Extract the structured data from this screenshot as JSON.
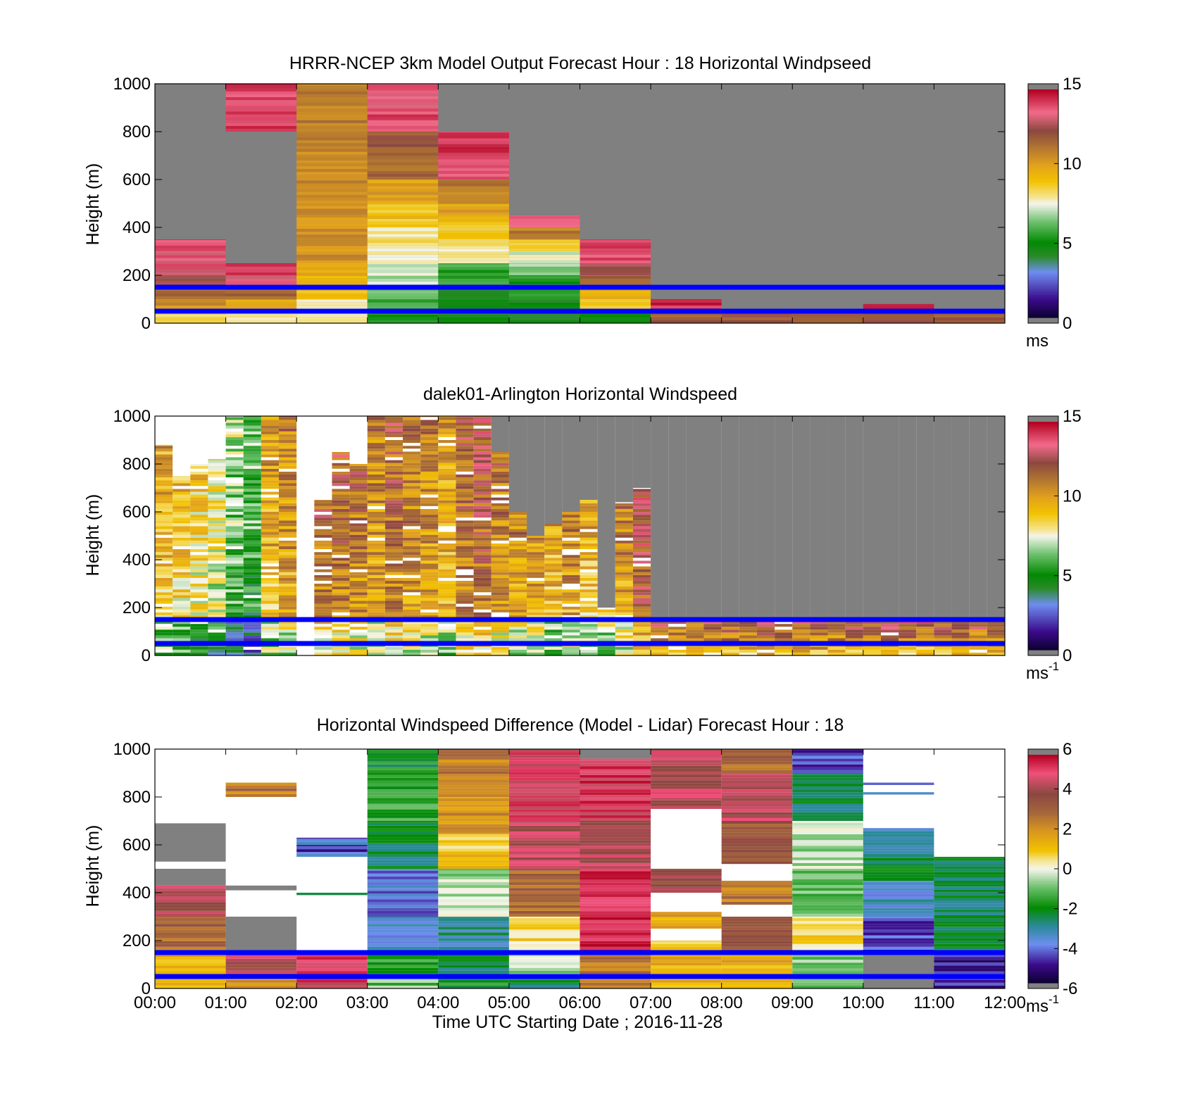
{
  "chart_data": [
    {
      "type": "heatmap",
      "title": "HRRR-NCEP 3km Model Output   Forecast Hour : 18 Horizontal Windpseed",
      "ylabel": "Height (m)",
      "xlabel": "",
      "ylim": [
        0,
        1000
      ],
      "xlim": [
        "00:00",
        "12:00"
      ],
      "yticks": [
        "0",
        "200",
        "400",
        "600",
        "800",
        "1000"
      ],
      "colorbar": {
        "min": 0,
        "max": 15,
        "ticks": [
          "0",
          "5",
          "10",
          "15"
        ],
        "unit_main": "ms",
        "unit_sup": ""
      },
      "reference_lines_height_m": [
        50,
        150
      ],
      "reference_line_color": "#0000ff",
      "missing_color": "#808080",
      "columns": [
        {
          "start": "00:00",
          "cells": [
            [
              0,
              50,
              8.5
            ],
            [
              50,
              100,
              10.5
            ],
            [
              100,
              150,
              11.5
            ],
            [
              150,
              200,
              12.5
            ],
            [
              200,
              300,
              13.5
            ],
            [
              300,
              350,
              14
            ]
          ]
        },
        {
          "start": "01:00",
          "cells": [
            [
              0,
              50,
              8
            ],
            [
              50,
              100,
              10
            ],
            [
              100,
              150,
              11.5
            ],
            [
              150,
              200,
              13.5
            ],
            [
              200,
              250,
              14.5
            ],
            [
              800,
              1000,
              14
            ]
          ]
        },
        {
          "start": "02:00",
          "cells": [
            [
              0,
              50,
              7.5
            ],
            [
              50,
              100,
              8
            ],
            [
              100,
              150,
              9
            ],
            [
              150,
              250,
              9.5
            ],
            [
              250,
              500,
              10.5
            ],
            [
              500,
              800,
              10.8
            ],
            [
              800,
              1000,
              11
            ]
          ]
        },
        {
          "start": "03:00",
          "cells": [
            [
              0,
              50,
              5
            ],
            [
              50,
              100,
              5.5
            ],
            [
              100,
              150,
              6
            ],
            [
              150,
              250,
              7
            ],
            [
              250,
              300,
              7.5
            ],
            [
              300,
              400,
              8
            ],
            [
              400,
              500,
              9
            ],
            [
              500,
              600,
              10
            ],
            [
              600,
              700,
              11.5
            ],
            [
              700,
              800,
              12
            ],
            [
              800,
              900,
              14
            ],
            [
              900,
              1000,
              13.5
            ]
          ]
        },
        {
          "start": "04:00",
          "cells": [
            [
              0,
              50,
              4.5
            ],
            [
              50,
              150,
              4.5
            ],
            [
              150,
              250,
              5.5
            ],
            [
              250,
              350,
              8
            ],
            [
              350,
              450,
              9
            ],
            [
              450,
              500,
              10
            ],
            [
              500,
              600,
              11
            ],
            [
              600,
              700,
              14
            ],
            [
              700,
              800,
              14.5
            ]
          ]
        },
        {
          "start": "05:00",
          "cells": [
            [
              0,
              50,
              4.5
            ],
            [
              50,
              100,
              4.5
            ],
            [
              100,
              150,
              5
            ],
            [
              150,
              200,
              5.5
            ],
            [
              200,
              250,
              6.5
            ],
            [
              250,
              300,
              7.5
            ],
            [
              300,
              350,
              9
            ],
            [
              350,
              400,
              11
            ],
            [
              400,
              450,
              14
            ]
          ]
        },
        {
          "start": "06:00",
          "cells": [
            [
              0,
              50,
              5
            ],
            [
              50,
              100,
              8.5
            ],
            [
              100,
              150,
              9.5
            ],
            [
              150,
              200,
              11.5
            ],
            [
              200,
              250,
              12.5
            ],
            [
              250,
              300,
              14
            ],
            [
              300,
              350,
              14.5
            ]
          ]
        },
        {
          "start": "07:00",
          "cells": [
            [
              0,
              50,
              12
            ],
            [
              50,
              100,
              14.5
            ]
          ]
        },
        {
          "start": "08:00",
          "cells": [
            [
              0,
              50,
              12
            ]
          ]
        },
        {
          "start": "09:00",
          "cells": [
            [
              0,
              50,
              12
            ]
          ]
        },
        {
          "start": "10:00",
          "cells": [
            [
              0,
              50,
              12
            ],
            [
              50,
              80,
              14.5
            ]
          ]
        },
        {
          "start": "11:00",
          "cells": [
            [
              0,
              50,
              12
            ]
          ]
        }
      ]
    },
    {
      "type": "heatmap",
      "title": "dalek01-Arlington  Horizontal Windspeed",
      "ylabel": "Height (m)",
      "xlabel": "",
      "ylim": [
        0,
        1000
      ],
      "xlim": [
        "00:00",
        "12:00"
      ],
      "yticks": [
        "0",
        "200",
        "400",
        "600",
        "800",
        "1000"
      ],
      "colorbar": {
        "min": 0,
        "max": 15,
        "ticks": [
          "0",
          "5",
          "10",
          "15"
        ],
        "unit_main": "ms",
        "unit_sup": "-1"
      },
      "reference_lines_height_m": [
        50,
        150
      ],
      "reference_line_color": "#0000ff",
      "missing_color": "#808080",
      "columns_per_hour": 4,
      "column_top_height_m": [
        880,
        750,
        800,
        820,
        1000,
        1000,
        1000,
        1000,
        0,
        650,
        850,
        800,
        1000,
        1000,
        1000,
        1000,
        1000,
        1000,
        1000,
        850,
        600,
        500,
        550,
        600,
        650,
        200,
        640,
        700,
        150,
        150,
        150,
        150,
        150,
        150,
        150,
        150,
        150,
        150,
        150,
        150,
        150,
        150,
        150,
        150,
        150,
        150,
        150,
        150
      ],
      "column_mean_speed_ms": [
        10,
        9.5,
        9,
        8.5,
        7,
        6.5,
        10.5,
        11,
        0,
        12,
        12,
        11.5,
        11,
        12,
        11.5,
        11,
        10.5,
        12,
        12.5,
        11.5,
        11,
        10.5,
        10,
        11,
        10,
        9,
        11,
        13,
        13,
        12.5,
        12.5,
        13,
        13,
        13,
        13,
        13,
        13,
        13,
        13,
        13,
        13,
        13,
        13,
        13,
        13,
        13,
        13,
        13
      ]
    },
    {
      "type": "heatmap",
      "title": "Horizontal Windspeed Difference (Model - Lidar) Forecast Hour : 18",
      "ylabel": "Height (m)",
      "xlabel": "Time UTC  Starting Date ; 2016-11-28",
      "ylim": [
        0,
        1000
      ],
      "xlim": [
        "00:00",
        "12:00"
      ],
      "xticks": [
        "00:00",
        "01:00",
        "02:00",
        "03:00",
        "04:00",
        "05:00",
        "06:00",
        "07:00",
        "08:00",
        "09:00",
        "10:00",
        "11:00",
        "12:00"
      ],
      "yticks": [
        "0",
        "200",
        "400",
        "600",
        "800",
        "1000"
      ],
      "colorbar": {
        "min": -6,
        "max": 6,
        "ticks": [
          "-6",
          "-4",
          "-2",
          "0",
          "2",
          "4",
          "6"
        ],
        "unit_main": "ms",
        "unit_sup": "-1"
      },
      "reference_lines_height_m": [
        50,
        150
      ],
      "reference_line_color": "#0000ff",
      "missing_color": "#808080",
      "columns": [
        {
          "start": "00:00",
          "cells": [
            [
              0,
              150,
              1.5
            ],
            [
              150,
              300,
              3
            ],
            [
              300,
              430,
              4.5
            ],
            [
              430,
              500,
              "missing"
            ],
            [
              530,
              690,
              "missing"
            ]
          ]
        },
        {
          "start": "01:00",
          "cells": [
            [
              0,
              50,
              2
            ],
            [
              50,
              100,
              4
            ],
            [
              100,
              150,
              4.5
            ],
            [
              150,
              300,
              "missing"
            ],
            [
              410,
              430,
              "missing"
            ],
            [
              800,
              860,
              2.5
            ]
          ]
        },
        {
          "start": "02:00",
          "cells": [
            [
              0,
              150,
              5
            ],
            [
              390,
              400,
              -3
            ],
            [
              550,
              570,
              -3.5
            ],
            [
              570,
              600,
              -5
            ],
            [
              600,
              630,
              -4
            ]
          ]
        },
        {
          "start": "03:00",
          "cells": [
            [
              0,
              50,
              -1
            ],
            [
              50,
              150,
              -1.5
            ],
            [
              150,
              300,
              -3.5
            ],
            [
              300,
              500,
              -4
            ],
            [
              500,
              700,
              -2.5
            ],
            [
              700,
              900,
              -1.5
            ],
            [
              900,
              1000,
              -2
            ]
          ]
        },
        {
          "start": "04:00",
          "cells": [
            [
              0,
              50,
              -2
            ],
            [
              50,
              150,
              -2.5
            ],
            [
              150,
              300,
              -3
            ],
            [
              300,
              500,
              -0.5
            ],
            [
              500,
              650,
              1
            ],
            [
              650,
              800,
              2
            ],
            [
              800,
              1000,
              2.5
            ]
          ]
        },
        {
          "start": "05:00",
          "cells": [
            [
              0,
              50,
              -2.5
            ],
            [
              50,
              150,
              -0.5
            ],
            [
              150,
              300,
              0.5
            ],
            [
              300,
              500,
              3
            ],
            [
              500,
              700,
              4.5
            ],
            [
              700,
              1000,
              5
            ]
          ]
        },
        {
          "start": "06:00",
          "cells": [
            [
              0,
              150,
              2.5
            ],
            [
              150,
              250,
              5.5
            ],
            [
              250,
              500,
              5.5
            ],
            [
              500,
              700,
              4.5
            ],
            [
              700,
              960,
              5.2
            ],
            [
              960,
              1000,
              "missing"
            ]
          ]
        },
        {
          "start": "07:00",
          "cells": [
            [
              0,
              150,
              1.5
            ],
            [
              150,
              200,
              1
            ],
            [
              250,
              320,
              1.5
            ],
            [
              400,
              500,
              4
            ],
            [
              750,
              1000,
              4.5
            ]
          ]
        },
        {
          "start": "08:00",
          "cells": [
            [
              0,
              150,
              1.5
            ],
            [
              150,
              300,
              3.5
            ],
            [
              350,
              450,
              2.5
            ],
            [
              520,
              700,
              3.5
            ],
            [
              700,
              900,
              4.5
            ],
            [
              900,
              1000,
              3
            ]
          ]
        },
        {
          "start": "09:00",
          "cells": [
            [
              0,
              150,
              -1
            ],
            [
              150,
              300,
              0.5
            ],
            [
              300,
              500,
              -1
            ],
            [
              500,
              700,
              -0.5
            ],
            [
              700,
              900,
              -2.5
            ],
            [
              900,
              1000,
              -4.5
            ]
          ]
        },
        {
          "start": "10:00",
          "cells": [
            [
              0,
              150,
              "missing"
            ],
            [
              150,
              300,
              -4.5
            ],
            [
              300,
              450,
              -3.5
            ],
            [
              450,
              550,
              -2.5
            ],
            [
              550,
              670,
              -3.5
            ],
            [
              810,
              820,
              -3
            ],
            [
              850,
              860,
              -4
            ]
          ]
        },
        {
          "start": "11:00",
          "cells": [
            [
              0,
              150,
              -5
            ],
            [
              150,
              550,
              -2.5
            ]
          ]
        }
      ]
    }
  ]
}
